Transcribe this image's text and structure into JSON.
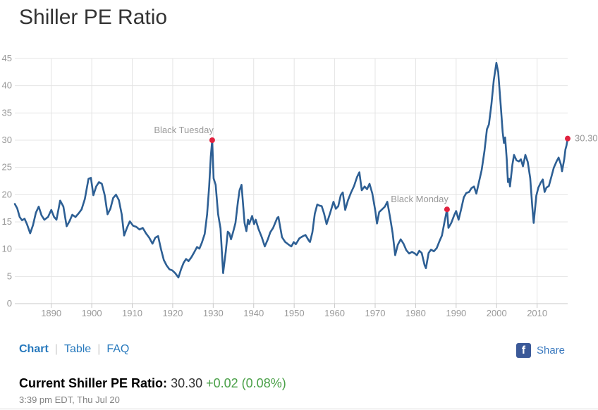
{
  "page": {
    "title": "Shiller PE Ratio",
    "tabs": [
      {
        "label": "Chart",
        "active": true
      },
      {
        "label": "Table",
        "active": false
      },
      {
        "label": "FAQ",
        "active": false
      }
    ],
    "separator": "|",
    "share": {
      "label": "Share",
      "icon": "facebook",
      "icon_glyph": "f"
    },
    "current": {
      "label": "Current Shiller PE Ratio:",
      "value": "30.30",
      "change": "+0.02 (0.08%)"
    },
    "timestamp": "3:39 pm EDT, Thu Jul 20",
    "colors": {
      "link_blue": "#2779bd",
      "facebook_blue": "#3b5998",
      "change_green": "#4aa048",
      "title_text": "#333333"
    }
  },
  "chart_data": {
    "type": "line",
    "title": "Shiller PE Ratio",
    "xlabel": "",
    "ylabel": "",
    "xlim": [
      1881,
      2017.55
    ],
    "ylim": [
      0,
      45
    ],
    "y_ticks": [
      0,
      5,
      10,
      15,
      20,
      25,
      30,
      35,
      40,
      45
    ],
    "x_ticks": [
      1890,
      1900,
      1910,
      1920,
      1930,
      1940,
      1950,
      1960,
      1970,
      1980,
      1990,
      2000,
      2010
    ],
    "grid": true,
    "legend": "none",
    "colors": {
      "line": "#2d5f94",
      "marker": "#e0223f",
      "grid": "#e4e4e4",
      "axis": "#c8c8c8",
      "tick_label": "#999999"
    },
    "annotations": [
      {
        "label": "Black Tuesday",
        "x": 1929.75,
        "y": 30.0,
        "label_position": "above-left"
      },
      {
        "label": "Black Monday",
        "x": 1987.75,
        "y": 17.3,
        "label_position": "above-left"
      },
      {
        "label": "30.30",
        "x": 2017.55,
        "y": 30.3,
        "label_position": "right"
      }
    ],
    "series": [
      {
        "name": "Shiller PE Ratio",
        "points": [
          [
            1881.0,
            18.3
          ],
          [
            1881.6,
            17.5
          ],
          [
            1882.2,
            15.9
          ],
          [
            1882.8,
            15.3
          ],
          [
            1883.4,
            15.6
          ],
          [
            1884.0,
            14.6
          ],
          [
            1884.8,
            12.9
          ],
          [
            1885.5,
            14.4
          ],
          [
            1886.2,
            16.7
          ],
          [
            1886.9,
            17.8
          ],
          [
            1887.6,
            16.2
          ],
          [
            1888.3,
            15.4
          ],
          [
            1889.2,
            15.9
          ],
          [
            1890.0,
            17.2
          ],
          [
            1890.7,
            15.9
          ],
          [
            1891.3,
            15.4
          ],
          [
            1892.2,
            18.9
          ],
          [
            1893.0,
            17.8
          ],
          [
            1893.8,
            14.2
          ],
          [
            1894.5,
            15.1
          ],
          [
            1895.2,
            16.3
          ],
          [
            1896.0,
            15.9
          ],
          [
            1896.8,
            16.6
          ],
          [
            1897.5,
            17.3
          ],
          [
            1898.3,
            19.2
          ],
          [
            1899.2,
            22.9
          ],
          [
            1899.8,
            23.1
          ],
          [
            1900.4,
            19.9
          ],
          [
            1901.1,
            21.5
          ],
          [
            1901.8,
            22.3
          ],
          [
            1902.5,
            22.0
          ],
          [
            1903.2,
            19.9
          ],
          [
            1903.9,
            16.4
          ],
          [
            1904.6,
            17.4
          ],
          [
            1905.3,
            19.4
          ],
          [
            1906.0,
            20.0
          ],
          [
            1906.7,
            19.0
          ],
          [
            1907.4,
            16.4
          ],
          [
            1908.0,
            12.5
          ],
          [
            1908.7,
            13.9
          ],
          [
            1909.4,
            15.1
          ],
          [
            1910.2,
            14.3
          ],
          [
            1911.0,
            14.1
          ],
          [
            1911.8,
            13.6
          ],
          [
            1912.6,
            13.9
          ],
          [
            1913.4,
            12.9
          ],
          [
            1914.2,
            12.1
          ],
          [
            1915.0,
            11.0
          ],
          [
            1915.7,
            12.1
          ],
          [
            1916.4,
            12.4
          ],
          [
            1917.1,
            10.0
          ],
          [
            1917.8,
            8.0
          ],
          [
            1918.5,
            7.0
          ],
          [
            1919.2,
            6.3
          ],
          [
            1919.9,
            6.1
          ],
          [
            1920.6,
            5.6
          ],
          [
            1921.4,
            4.8
          ],
          [
            1922.1,
            6.4
          ],
          [
            1922.7,
            7.5
          ],
          [
            1923.3,
            8.2
          ],
          [
            1923.9,
            7.8
          ],
          [
            1924.6,
            8.5
          ],
          [
            1925.3,
            9.4
          ],
          [
            1926.0,
            10.4
          ],
          [
            1926.6,
            10.1
          ],
          [
            1927.2,
            11.2
          ],
          [
            1927.9,
            12.8
          ],
          [
            1928.5,
            16.4
          ],
          [
            1929.0,
            21.5
          ],
          [
            1929.4,
            27.0
          ],
          [
            1929.75,
            30.0
          ],
          [
            1930.1,
            23.0
          ],
          [
            1930.6,
            21.8
          ],
          [
            1931.2,
            16.5
          ],
          [
            1931.8,
            13.8
          ],
          [
            1932.45,
            5.6
          ],
          [
            1933.1,
            9.5
          ],
          [
            1933.6,
            13.2
          ],
          [
            1934.0,
            12.9
          ],
          [
            1934.4,
            11.8
          ],
          [
            1934.9,
            13.1
          ],
          [
            1935.5,
            14.8
          ],
          [
            1936.1,
            18.7
          ],
          [
            1936.5,
            20.8
          ],
          [
            1937.0,
            21.8
          ],
          [
            1937.75,
            14.8
          ],
          [
            1938.2,
            13.3
          ],
          [
            1938.6,
            15.4
          ],
          [
            1938.9,
            14.6
          ],
          [
            1939.6,
            16.1
          ],
          [
            1940.1,
            14.6
          ],
          [
            1940.5,
            15.4
          ],
          [
            1941.2,
            13.7
          ],
          [
            1942.0,
            12.2
          ],
          [
            1942.75,
            10.5
          ],
          [
            1943.5,
            11.8
          ],
          [
            1944.1,
            13.1
          ],
          [
            1944.8,
            13.9
          ],
          [
            1945.3,
            14.8
          ],
          [
            1945.8,
            15.7
          ],
          [
            1946.1,
            15.9
          ],
          [
            1947.0,
            12.2
          ],
          [
            1947.8,
            11.3
          ],
          [
            1948.7,
            10.8
          ],
          [
            1949.3,
            10.5
          ],
          [
            1949.9,
            11.3
          ],
          [
            1950.4,
            10.9
          ],
          [
            1951.3,
            12.0
          ],
          [
            1952.2,
            12.4
          ],
          [
            1952.8,
            12.6
          ],
          [
            1953.6,
            11.6
          ],
          [
            1953.9,
            11.3
          ],
          [
            1954.5,
            13.1
          ],
          [
            1955.1,
            16.5
          ],
          [
            1955.7,
            18.2
          ],
          [
            1956.2,
            18.0
          ],
          [
            1956.8,
            17.9
          ],
          [
            1957.4,
            16.5
          ],
          [
            1958.0,
            14.6
          ],
          [
            1958.9,
            16.7
          ],
          [
            1959.7,
            18.7
          ],
          [
            1960.3,
            17.4
          ],
          [
            1960.9,
            17.9
          ],
          [
            1961.5,
            19.9
          ],
          [
            1962.0,
            20.4
          ],
          [
            1962.6,
            17.2
          ],
          [
            1963.3,
            19.0
          ],
          [
            1964.0,
            20.3
          ],
          [
            1964.8,
            21.6
          ],
          [
            1965.5,
            23.2
          ],
          [
            1966.1,
            24.1
          ],
          [
            1966.7,
            20.8
          ],
          [
            1967.4,
            21.5
          ],
          [
            1968.0,
            21.0
          ],
          [
            1968.6,
            22.0
          ],
          [
            1969.3,
            20.2
          ],
          [
            1970.0,
            17.2
          ],
          [
            1970.45,
            14.7
          ],
          [
            1971.0,
            16.8
          ],
          [
            1971.7,
            17.3
          ],
          [
            1972.4,
            17.8
          ],
          [
            1973.0,
            18.7
          ],
          [
            1973.7,
            15.8
          ],
          [
            1974.3,
            13.0
          ],
          [
            1974.95,
            8.9
          ],
          [
            1975.6,
            10.8
          ],
          [
            1976.3,
            11.8
          ],
          [
            1977.0,
            11.0
          ],
          [
            1977.7,
            9.8
          ],
          [
            1978.4,
            9.2
          ],
          [
            1979.1,
            9.5
          ],
          [
            1979.8,
            9.2
          ],
          [
            1980.3,
            8.9
          ],
          [
            1980.9,
            9.7
          ],
          [
            1981.5,
            9.3
          ],
          [
            1982.2,
            7.1
          ],
          [
            1982.55,
            6.5
          ],
          [
            1983.2,
            9.3
          ],
          [
            1983.8,
            9.9
          ],
          [
            1984.5,
            9.6
          ],
          [
            1985.2,
            10.2
          ],
          [
            1985.9,
            11.5
          ],
          [
            1986.5,
            12.5
          ],
          [
            1987.1,
            14.9
          ],
          [
            1987.75,
            17.3
          ],
          [
            1988.1,
            13.9
          ],
          [
            1988.8,
            14.8
          ],
          [
            1989.5,
            16.2
          ],
          [
            1990.0,
            17.0
          ],
          [
            1990.6,
            15.4
          ],
          [
            1991.2,
            17.2
          ],
          [
            1991.9,
            19.5
          ],
          [
            1992.5,
            20.3
          ],
          [
            1993.2,
            20.5
          ],
          [
            1993.8,
            21.2
          ],
          [
            1994.4,
            21.5
          ],
          [
            1995.0,
            20.2
          ],
          [
            1995.7,
            22.5
          ],
          [
            1996.3,
            24.5
          ],
          [
            1997.0,
            28.0
          ],
          [
            1997.6,
            32.0
          ],
          [
            1998.1,
            32.9
          ],
          [
            1998.7,
            36.5
          ],
          [
            1999.3,
            41.0
          ],
          [
            1999.95,
            44.2
          ],
          [
            2000.4,
            42.5
          ],
          [
            2001.0,
            36.5
          ],
          [
            2001.5,
            31.5
          ],
          [
            2001.8,
            29.5
          ],
          [
            2002.1,
            30.5
          ],
          [
            2002.5,
            26.5
          ],
          [
            2002.8,
            22.3
          ],
          [
            2003.1,
            22.9
          ],
          [
            2003.3,
            21.5
          ],
          [
            2003.9,
            25.5
          ],
          [
            2004.3,
            27.3
          ],
          [
            2004.9,
            26.3
          ],
          [
            2005.5,
            26.1
          ],
          [
            2006.0,
            26.5
          ],
          [
            2006.5,
            25.2
          ],
          [
            2007.1,
            27.3
          ],
          [
            2007.7,
            26.0
          ],
          [
            2008.3,
            23.0
          ],
          [
            2008.8,
            17.8
          ],
          [
            2009.15,
            14.8
          ],
          [
            2009.8,
            19.8
          ],
          [
            2010.3,
            21.3
          ],
          [
            2010.9,
            22.2
          ],
          [
            2011.4,
            22.8
          ],
          [
            2011.85,
            20.5
          ],
          [
            2012.3,
            21.3
          ],
          [
            2012.9,
            21.6
          ],
          [
            2013.5,
            23.2
          ],
          [
            2014.1,
            24.9
          ],
          [
            2014.8,
            26.1
          ],
          [
            2015.3,
            26.8
          ],
          [
            2015.9,
            25.5
          ],
          [
            2016.15,
            24.3
          ],
          [
            2016.7,
            26.5
          ],
          [
            2017.0,
            28.3
          ],
          [
            2017.25,
            29.0
          ],
          [
            2017.55,
            30.3
          ]
        ]
      }
    ]
  }
}
